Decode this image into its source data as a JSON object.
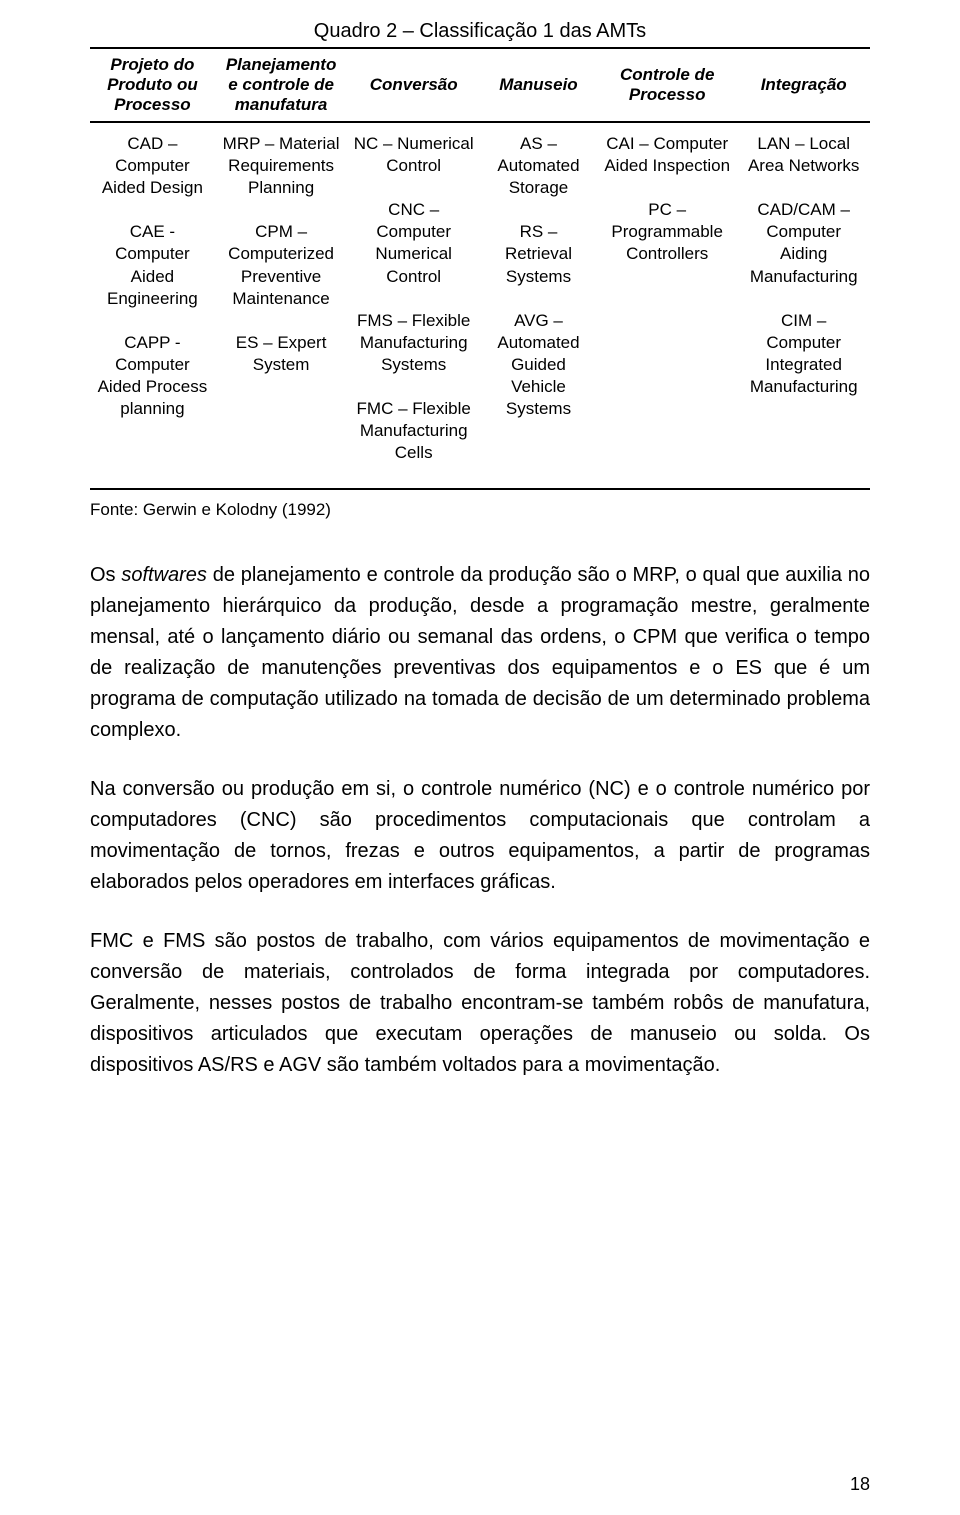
{
  "table": {
    "title": "Quadro 2 – Classificação 1 das AMTs",
    "headers": [
      "Projeto do Produto ou Processo",
      "Planejamento e controle de manufatura",
      "Conversão",
      "Manuseio",
      "Controle de Processo",
      "Integração"
    ],
    "cells": [
      "CAD – Computer Aided Design\n\nCAE - Computer Aided Engineering\n\nCAPP - Computer Aided Process planning",
      "MRP – Material Requirements Planning\n\nCPM – Computerized Preventive Maintenance\n\nES – Expert System",
      "NC – Numerical Control\n\nCNC – Computer Numerical Control\n\nFMS – Flexible Manufacturing Systems\n\nFMC – Flexible Manufacturing Cells",
      "AS – Automated Storage\n\nRS – Retrieval Systems\n\nAVG – Automated Guided Vehicle Systems",
      "CAI – Computer Aided Inspection\n\nPC – Programmable Controllers",
      "LAN – Local Area Networks\n\nCAD/CAM – Computer Aiding Manufacturing\n\nCIM – Computer Integrated Manufacturing"
    ],
    "source": "Fonte: Gerwin e Kolodny (1992)",
    "col_widths": [
      "16%",
      "17%",
      "17%",
      "15%",
      "18%",
      "17%"
    ]
  },
  "paragraphs": [
    "Os softwares de planejamento e controle da produção são o MRP, o qual que auxilia no planejamento hierárquico da produção, desde a programação mestre, geralmente mensal, até o lançamento diário ou semanal das ordens, o CPM que verifica o tempo de realização de manutenções preventivas dos equipamentos e o ES que é um programa de computação utilizado na tomada de decisão de um determinado problema complexo.",
    "Na conversão ou produção em si, o controle numérico (NC) e o controle numérico por computadores (CNC) são procedimentos computacionais que controlam a movimentação de tornos, frezas e outros equipamentos, a partir de programas elaborados pelos operadores em interfaces gráficas.",
    "FMC e FMS são postos de trabalho, com vários equipamentos de movimentação e conversão de materiais, controlados de forma integrada por computadores. Geralmente, nesses postos de trabalho encontram-se também robôs de manufatura, dispositivos articulados que executam operações de manuseio ou solda. Os dispositivos AS/RS e AGV são também voltados para a movimentação."
  ],
  "italic_spans": [
    "softwares"
  ],
  "page_number": "18",
  "colors": {
    "text": "#000000",
    "background": "#ffffff",
    "rule": "#000000"
  },
  "fonts": {
    "body_size_pt": 20,
    "table_size_pt": 17,
    "line_height": 1.55
  }
}
